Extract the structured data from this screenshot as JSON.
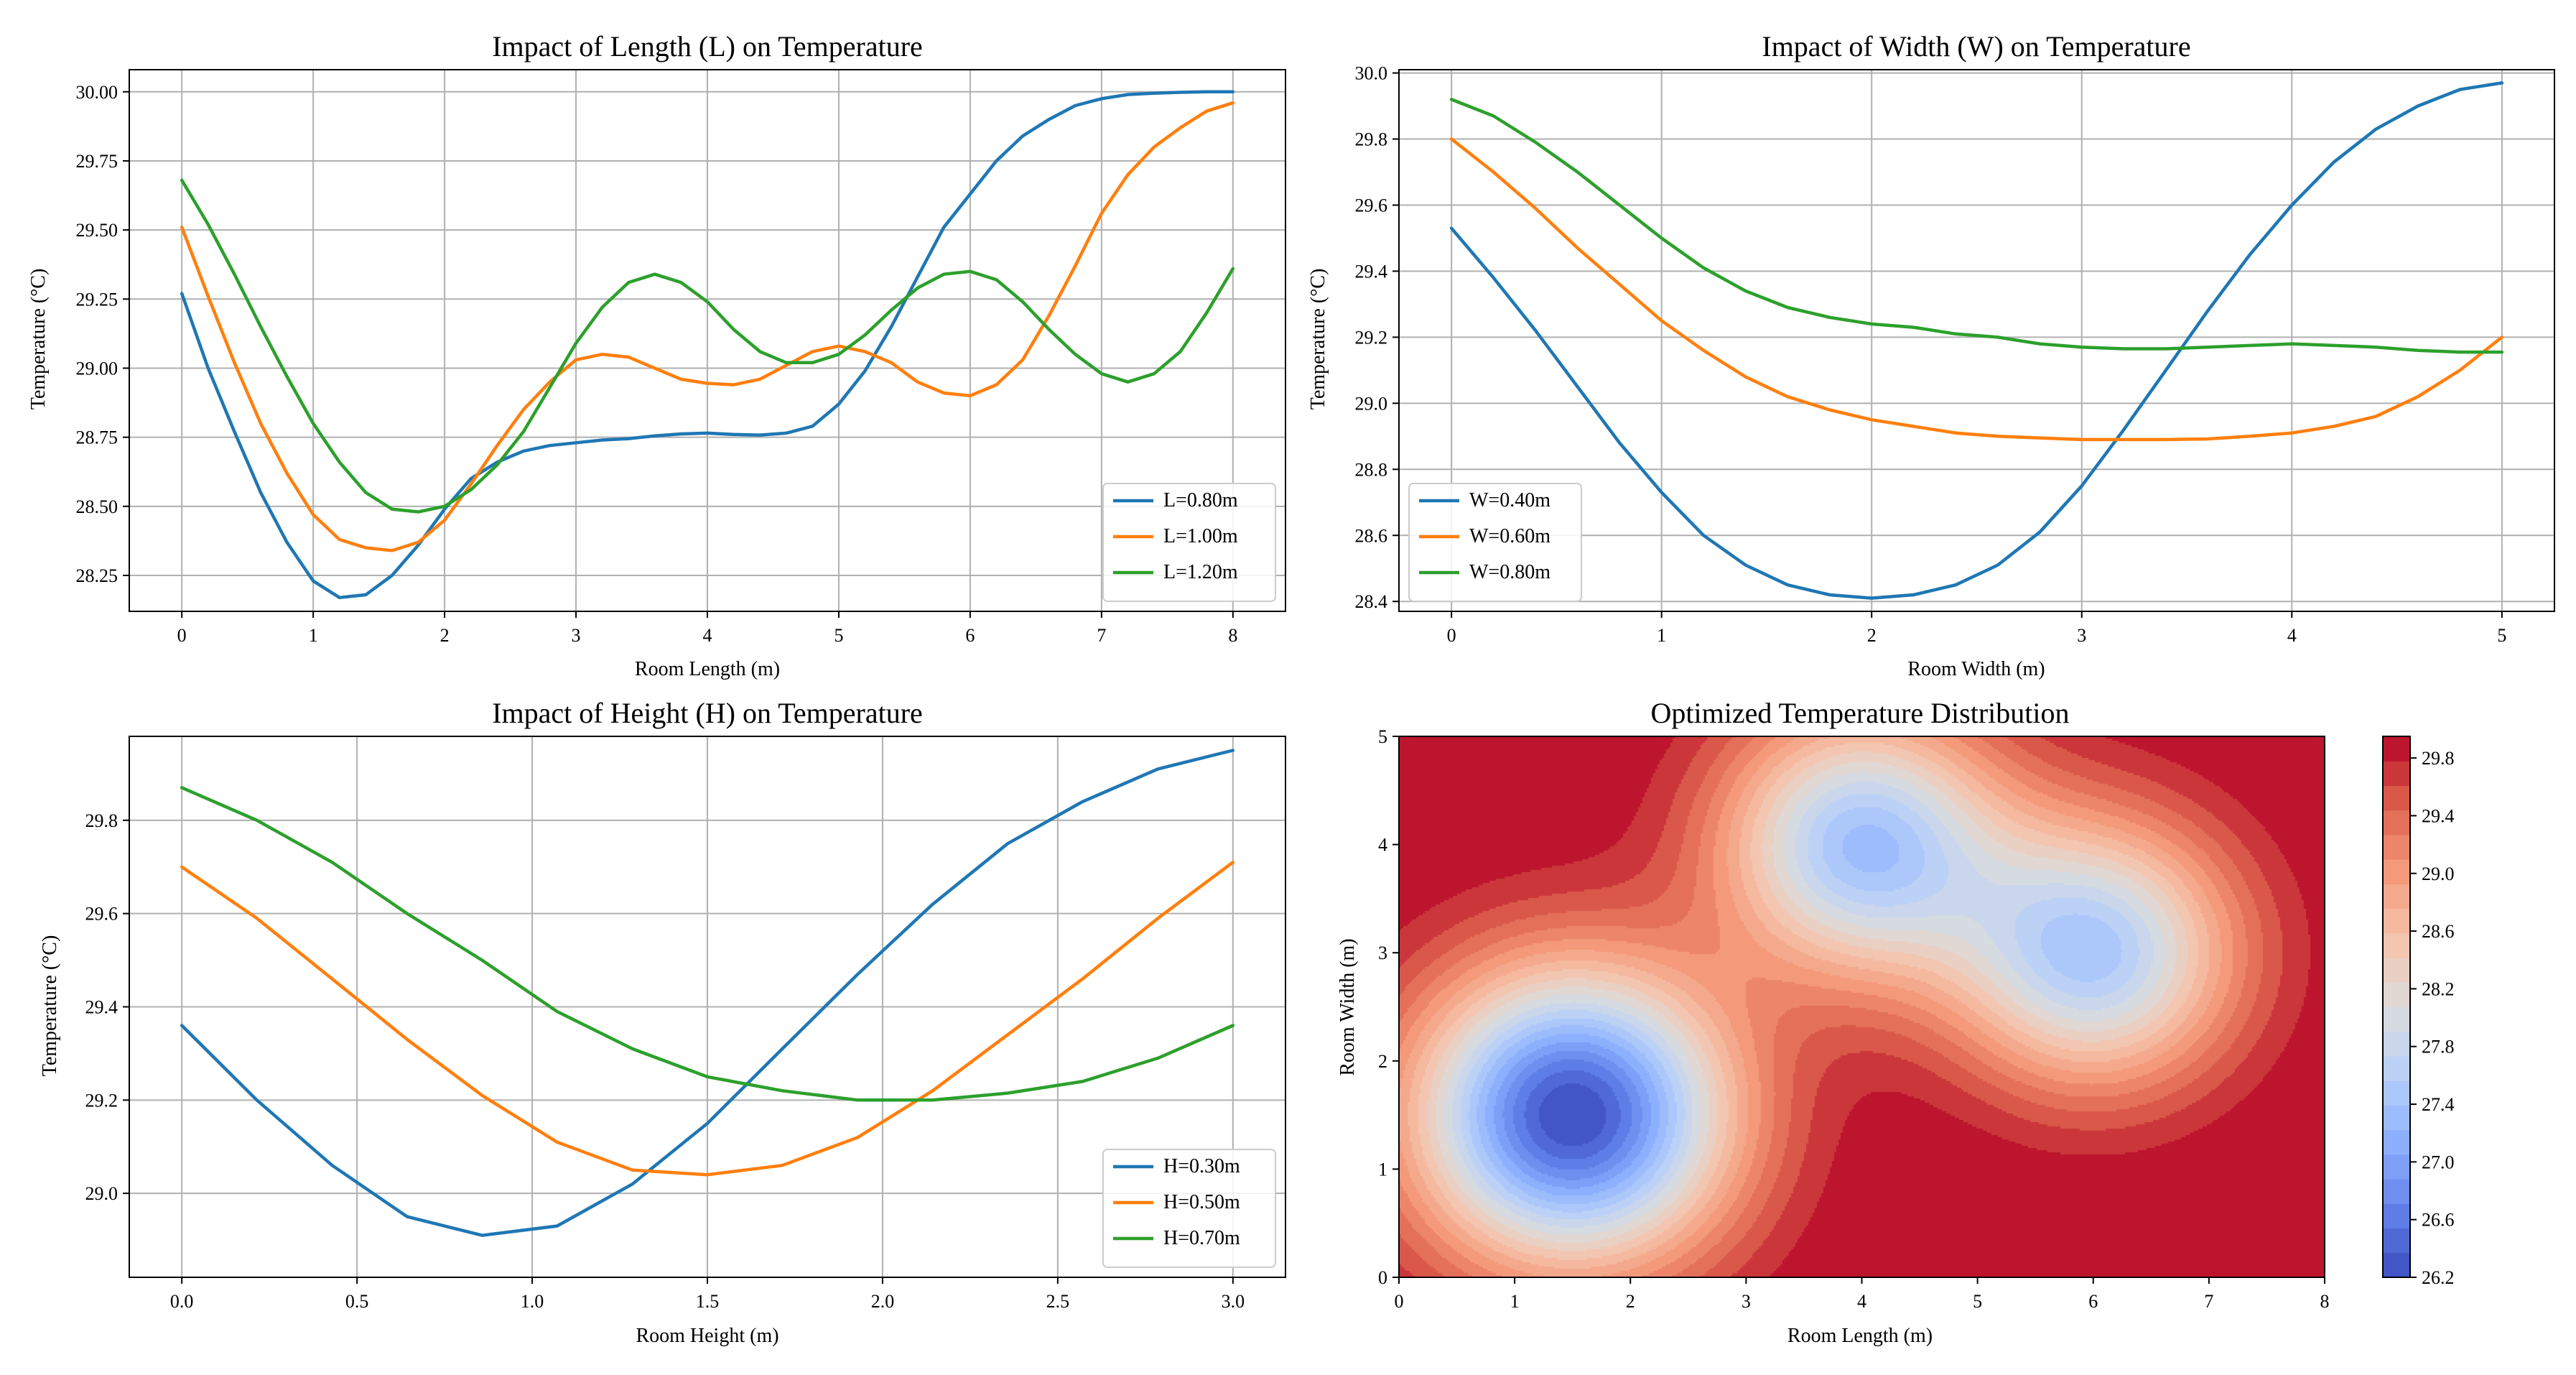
{
  "colors": {
    "blue": "#1f77b4",
    "orange": "#ff7f0e",
    "green": "#2ca02c",
    "grid": "#b0b0b0"
  },
  "chart_data": [
    {
      "type": "line",
      "title": "Impact of Length (L) on Temperature",
      "xlabel": "Room Length (m)",
      "ylabel": "Temperature (°C)",
      "xlim": [
        -0.4,
        8.4
      ],
      "ylim": [
        28.12,
        30.08
      ],
      "xticks": [
        0,
        1,
        2,
        3,
        4,
        5,
        6,
        7,
        8
      ],
      "yticks": [
        28.25,
        28.5,
        28.75,
        29.0,
        29.25,
        29.5,
        29.75,
        30.0
      ],
      "ytick_labels": [
        "28.25",
        "28.50",
        "28.75",
        "29.00",
        "29.25",
        "29.50",
        "29.75",
        "30.00"
      ],
      "grid": true,
      "legend_position": "lower right",
      "x": [
        0.0,
        0.2,
        0.4,
        0.6,
        0.8,
        1.0,
        1.2,
        1.4,
        1.6,
        1.8,
        2.0,
        2.2,
        2.4,
        2.6,
        2.8,
        3.0,
        3.2,
        3.4,
        3.6,
        3.8,
        4.0,
        4.2,
        4.4,
        4.6,
        4.8,
        5.0,
        5.2,
        5.4,
        5.6,
        5.8,
        6.0,
        6.2,
        6.4,
        6.6,
        6.8,
        7.0,
        7.2,
        7.4,
        7.6,
        7.8,
        8.0
      ],
      "series": [
        {
          "name": "L=0.80m",
          "color": "#1f77b4",
          "values": [
            29.27,
            29.0,
            28.77,
            28.55,
            28.37,
            28.23,
            28.17,
            28.18,
            28.25,
            28.36,
            28.49,
            28.6,
            28.66,
            28.7,
            28.72,
            28.73,
            28.74,
            28.745,
            28.755,
            28.762,
            28.765,
            28.76,
            28.758,
            28.765,
            28.79,
            28.87,
            28.99,
            29.15,
            29.33,
            29.51,
            29.63,
            29.75,
            29.84,
            29.9,
            29.95,
            29.975,
            29.99,
            29.995,
            29.998,
            30.0,
            30.0
          ]
        },
        {
          "name": "L=1.00m",
          "color": "#ff7f0e",
          "values": [
            29.51,
            29.26,
            29.02,
            28.8,
            28.62,
            28.47,
            28.38,
            28.35,
            28.34,
            28.37,
            28.45,
            28.58,
            28.72,
            28.85,
            28.95,
            29.03,
            29.05,
            29.04,
            29.0,
            28.96,
            28.945,
            28.94,
            28.96,
            29.01,
            29.06,
            29.08,
            29.06,
            29.02,
            28.95,
            28.91,
            28.9,
            28.94,
            29.03,
            29.19,
            29.37,
            29.56,
            29.7,
            29.8,
            29.87,
            29.93,
            29.96
          ]
        },
        {
          "name": "L=1.20m",
          "color": "#2ca02c",
          "values": [
            29.68,
            29.52,
            29.34,
            29.15,
            28.97,
            28.8,
            28.66,
            28.55,
            28.49,
            28.48,
            28.5,
            28.56,
            28.65,
            28.77,
            28.93,
            29.09,
            29.22,
            29.31,
            29.34,
            29.31,
            29.24,
            29.14,
            29.06,
            29.02,
            29.02,
            29.05,
            29.12,
            29.21,
            29.29,
            29.34,
            29.35,
            29.32,
            29.24,
            29.14,
            29.05,
            28.98,
            28.95,
            28.98,
            29.06,
            29.2,
            29.36
          ]
        }
      ]
    },
    {
      "type": "line",
      "title": "Impact of Width (W) on Temperature",
      "xlabel": "Room Width (m)",
      "ylabel": "Temperature (°C)",
      "xlim": [
        -0.25,
        5.25
      ],
      "ylim": [
        28.37,
        30.01
      ],
      "xticks": [
        0,
        1,
        2,
        3,
        4,
        5
      ],
      "yticks": [
        28.4,
        28.6,
        28.8,
        29.0,
        29.2,
        29.4,
        29.6,
        29.8,
        30.0
      ],
      "ytick_labels": [
        "28.4",
        "28.6",
        "28.8",
        "29.0",
        "29.2",
        "29.4",
        "29.6",
        "29.8",
        "30.0"
      ],
      "grid": true,
      "legend_position": "lower left",
      "x": [
        0.0,
        0.2,
        0.4,
        0.6,
        0.8,
        1.0,
        1.2,
        1.4,
        1.6,
        1.8,
        2.0,
        2.2,
        2.4,
        2.6,
        2.8,
        3.0,
        3.2,
        3.4,
        3.6,
        3.8,
        4.0,
        4.2,
        4.4,
        4.6,
        4.8,
        5.0
      ],
      "series": [
        {
          "name": "W=0.40m",
          "color": "#1f77b4",
          "values": [
            29.53,
            29.38,
            29.22,
            29.05,
            28.88,
            28.73,
            28.6,
            28.51,
            28.45,
            28.42,
            28.41,
            28.42,
            28.45,
            28.51,
            28.61,
            28.75,
            28.92,
            29.1,
            29.28,
            29.45,
            29.6,
            29.73,
            29.83,
            29.9,
            29.95,
            29.97
          ]
        },
        {
          "name": "W=0.60m",
          "color": "#ff7f0e",
          "values": [
            29.8,
            29.7,
            29.59,
            29.47,
            29.36,
            29.25,
            29.16,
            29.08,
            29.02,
            28.98,
            28.95,
            28.93,
            28.91,
            28.9,
            28.895,
            28.89,
            28.89,
            28.89,
            28.892,
            28.9,
            28.91,
            28.93,
            28.96,
            29.02,
            29.1,
            29.2
          ]
        },
        {
          "name": "W=0.80m",
          "color": "#2ca02c",
          "values": [
            29.92,
            29.87,
            29.79,
            29.7,
            29.6,
            29.5,
            29.41,
            29.34,
            29.29,
            29.26,
            29.24,
            29.23,
            29.21,
            29.2,
            29.18,
            29.17,
            29.165,
            29.165,
            29.17,
            29.175,
            29.18,
            29.175,
            29.17,
            29.16,
            29.155,
            29.155
          ]
        }
      ]
    },
    {
      "type": "line",
      "title": "Impact of Height (H) on Temperature",
      "xlabel": "Room Height (m)",
      "ylabel": "Temperature (°C)",
      "xlim": [
        -0.15,
        3.15
      ],
      "ylim": [
        28.82,
        29.98
      ],
      "xticks": [
        0.0,
        0.5,
        1.0,
        1.5,
        2.0,
        2.5,
        3.0
      ],
      "xtick_labels": [
        "0.0",
        "0.5",
        "1.0",
        "1.5",
        "2.0",
        "2.5",
        "3.0"
      ],
      "yticks": [
        29.0,
        29.2,
        29.4,
        29.6,
        29.8
      ],
      "ytick_labels": [
        "29.0",
        "29.2",
        "29.4",
        "29.6",
        "29.8"
      ],
      "grid": true,
      "legend_position": "lower right",
      "x": [
        0.0,
        0.214,
        0.429,
        0.643,
        0.857,
        1.071,
        1.286,
        1.5,
        1.714,
        1.929,
        2.143,
        2.357,
        2.571,
        2.786,
        3.0
      ],
      "series": [
        {
          "name": "H=0.30m",
          "color": "#1f77b4",
          "values": [
            29.36,
            29.2,
            29.06,
            28.95,
            28.91,
            28.93,
            29.02,
            29.15,
            29.31,
            29.47,
            29.62,
            29.75,
            29.84,
            29.91,
            29.95
          ]
        },
        {
          "name": "H=0.50m",
          "color": "#ff7f0e",
          "values": [
            29.7,
            29.59,
            29.46,
            29.33,
            29.21,
            29.11,
            29.05,
            29.04,
            29.06,
            29.12,
            29.22,
            29.34,
            29.46,
            29.59,
            29.71
          ]
        },
        {
          "name": "H=0.70m",
          "color": "#2ca02c",
          "values": [
            29.87,
            29.8,
            29.71,
            29.6,
            29.5,
            29.39,
            29.31,
            29.25,
            29.22,
            29.2,
            29.2,
            29.215,
            29.24,
            29.29,
            29.36
          ]
        }
      ]
    },
    {
      "type": "heatmap",
      "title": "Optimized Temperature Distribution",
      "xlabel": "Room Length (m)",
      "ylabel": "Room Width (m)",
      "xlim": [
        0,
        8
      ],
      "ylim": [
        0,
        5
      ],
      "xticks": [
        0,
        1,
        2,
        3,
        4,
        5,
        6,
        7,
        8
      ],
      "yticks": [
        0,
        1,
        2,
        3,
        4,
        5
      ],
      "colormap": "coolwarm",
      "zlim": [
        26.2,
        29.95
      ],
      "colorbar_ticks": [
        26.2,
        26.6,
        27.0,
        27.4,
        27.8,
        28.2,
        28.6,
        29.0,
        29.4,
        29.8
      ],
      "colorbar_labels": [
        "26.2",
        "26.6",
        "27.0",
        "27.4",
        "27.8",
        "28.2",
        "28.6",
        "29.0",
        "29.4",
        "29.8"
      ],
      "base_temperature": 30.0,
      "heat_sources": [
        {
          "x": 1.5,
          "y": 1.5,
          "depth": 3.8,
          "sigma": 0.95
        },
        {
          "x": 4.0,
          "y": 4.0,
          "depth": 2.6,
          "sigma": 0.85
        },
        {
          "x": 6.0,
          "y": 3.0,
          "depth": 2.5,
          "sigma": 0.85
        }
      ]
    }
  ]
}
